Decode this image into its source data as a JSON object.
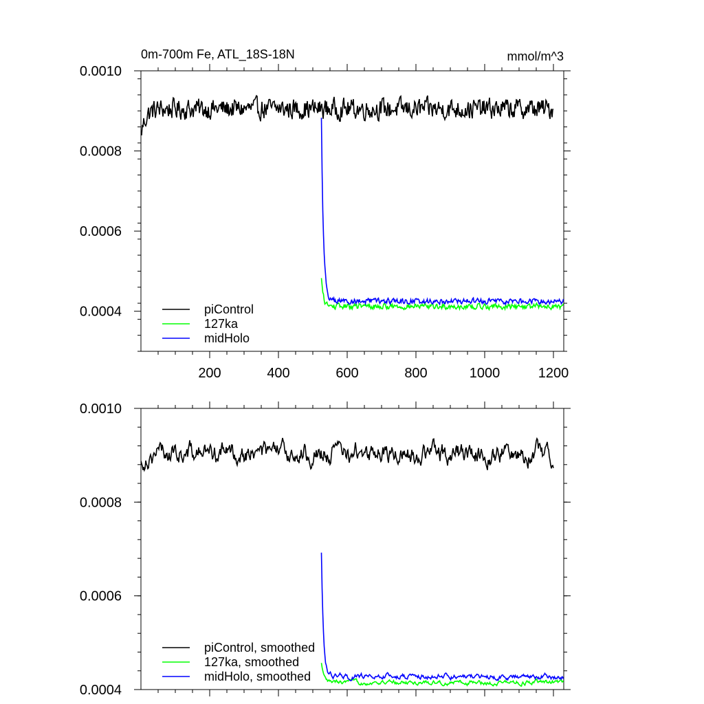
{
  "chart_data": [
    {
      "type": "line",
      "title": "0m-700m Fe, ATL_18S-18N",
      "units": "mmol/m^3",
      "xlim": [
        0,
        1230
      ],
      "ylim": [
        0.0003,
        0.001
      ],
      "x_ticks": [
        {
          "value": 200,
          "label": "200"
        },
        {
          "value": 400,
          "label": "400"
        },
        {
          "value": 600,
          "label": "600"
        },
        {
          "value": 800,
          "label": "800"
        },
        {
          "value": 1000,
          "label": "1000"
        },
        {
          "value": 1200,
          "label": "1200"
        }
      ],
      "y_ticks": [
        {
          "value": 0.0004,
          "label": "0.0004"
        },
        {
          "value": 0.0006,
          "label": "0.0006"
        },
        {
          "value": 0.0008,
          "label": "0.0008"
        },
        {
          "value": 0.001,
          "label": "0.0010"
        }
      ],
      "grid": false,
      "legend_position": "bottom-left",
      "series": [
        {
          "name": "piControl",
          "color": "#000000",
          "x_range": [
            0,
            1200
          ],
          "mean": 0.000905,
          "noise": 2.2e-05,
          "start": 0.00084
        },
        {
          "name": "127ka",
          "color": "#00ff00",
          "x_range": [
            525,
            1230
          ],
          "start": 0.00048,
          "equilibrium": 0.000412,
          "noise": 6e-06
        },
        {
          "name": "midHolo",
          "color": "#0000ff",
          "x_range": [
            525,
            1230
          ],
          "start": 0.00088,
          "equilibrium": 0.000425,
          "noise": 6e-06
        }
      ]
    },
    {
      "type": "line",
      "xlim": [
        0,
        1230
      ],
      "ylim": [
        0.0004,
        0.001
      ],
      "x_ticks": [
        {
          "value": 200,
          "label": ""
        },
        {
          "value": 400,
          "label": ""
        },
        {
          "value": 600,
          "label": ""
        },
        {
          "value": 800,
          "label": ""
        },
        {
          "value": 1000,
          "label": ""
        },
        {
          "value": 1200,
          "label": ""
        }
      ],
      "y_ticks": [
        {
          "value": 0.0004,
          "label": "0.0004"
        },
        {
          "value": 0.0006,
          "label": "0.0006"
        },
        {
          "value": 0.0008,
          "label": "0.0008"
        },
        {
          "value": 0.001,
          "label": "0.0010"
        }
      ],
      "grid": false,
      "legend_position": "bottom-left",
      "series": [
        {
          "name": "piControl, smoothed",
          "color": "#000000",
          "x_range": [
            0,
            1200
          ],
          "mean": 0.000905,
          "noise": 1.8e-05,
          "start": 0.00088
        },
        {
          "name": "127ka, smoothed",
          "color": "#00ff00",
          "x_range": [
            525,
            1230
          ],
          "start": 0.000455,
          "equilibrium": 0.000415,
          "noise": 4e-06
        },
        {
          "name": "midHolo, smoothed",
          "color": "#0000ff",
          "x_range": [
            525,
            1230
          ],
          "start": 0.00069,
          "equilibrium": 0.000428,
          "noise": 5e-06
        }
      ]
    }
  ]
}
